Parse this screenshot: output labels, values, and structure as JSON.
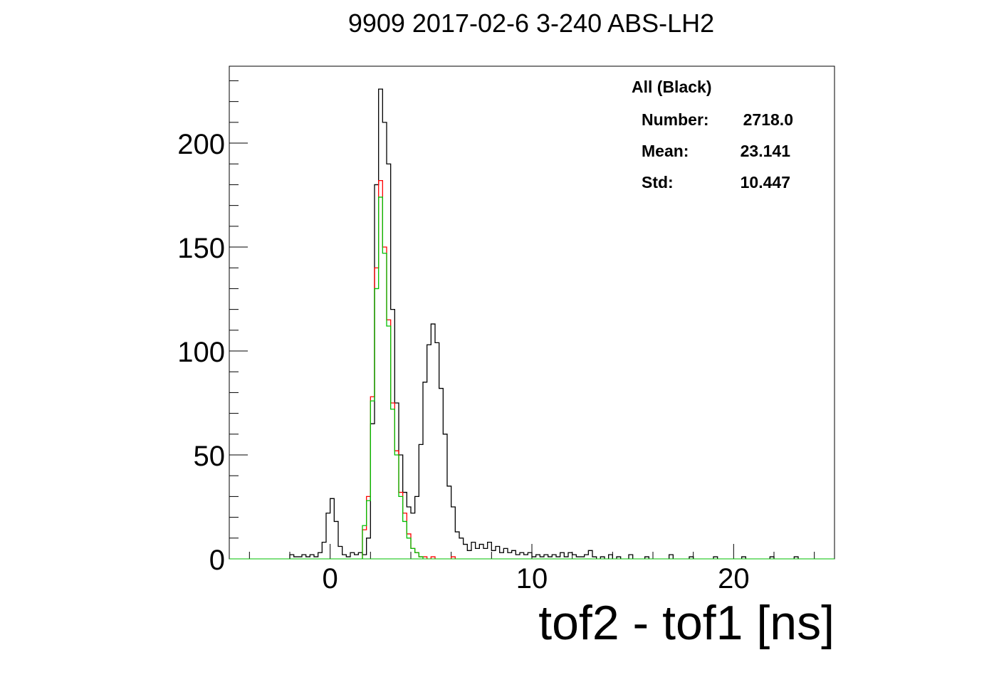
{
  "chart_data": {
    "type": "histogram",
    "title": "9909 2017-02-6 3-240 ABS-LH2",
    "xlabel": "tof2 - tof1 [ns]",
    "ylabel": "",
    "xlim": [
      -5,
      25
    ],
    "ylim": [
      0,
      237
    ],
    "xticks": [
      0,
      10,
      20
    ],
    "yticks": [
      0,
      50,
      100,
      150,
      200
    ],
    "grid": false,
    "colors": {
      "all": "#000000",
      "red": "#ff0000",
      "green": "#00c000"
    },
    "stats": {
      "header": "All (Black)",
      "rows": [
        {
          "label": "Number:",
          "value": "2718.0"
        },
        {
          "label": "Mean:",
          "value": "23.141"
        },
        {
          "label": "Std:",
          "value": "10.447"
        }
      ]
    },
    "bin_width": 0.2,
    "series": [
      {
        "name": "All (Black)",
        "color": "#000000",
        "bins": [
          [
            -2.0,
            2
          ],
          [
            -1.8,
            1
          ],
          [
            -1.6,
            1
          ],
          [
            -1.4,
            2
          ],
          [
            -1.2,
            1
          ],
          [
            -1.0,
            2
          ],
          [
            -0.8,
            1
          ],
          [
            -0.6,
            3
          ],
          [
            -0.4,
            8
          ],
          [
            -0.2,
            22
          ],
          [
            0.0,
            29
          ],
          [
            0.2,
            18
          ],
          [
            0.4,
            6
          ],
          [
            0.6,
            2
          ],
          [
            0.8,
            1
          ],
          [
            1.0,
            3
          ],
          [
            1.2,
            2
          ],
          [
            1.4,
            3
          ],
          [
            1.6,
            2
          ],
          [
            1.8,
            10
          ],
          [
            2.0,
            65
          ],
          [
            2.2,
            180
          ],
          [
            2.4,
            226
          ],
          [
            2.6,
            210
          ],
          [
            2.8,
            190
          ],
          [
            3.0,
            120
          ],
          [
            3.2,
            75
          ],
          [
            3.4,
            50
          ],
          [
            3.6,
            32
          ],
          [
            3.8,
            25
          ],
          [
            4.0,
            22
          ],
          [
            4.2,
            30
          ],
          [
            4.4,
            55
          ],
          [
            4.6,
            85
          ],
          [
            4.8,
            103
          ],
          [
            5.0,
            113
          ],
          [
            5.2,
            104
          ],
          [
            5.4,
            82
          ],
          [
            5.6,
            60
          ],
          [
            5.8,
            35
          ],
          [
            6.0,
            25
          ],
          [
            6.2,
            13
          ],
          [
            6.4,
            10
          ],
          [
            6.6,
            7
          ],
          [
            6.8,
            4
          ],
          [
            7.0,
            8
          ],
          [
            7.2,
            5
          ],
          [
            7.4,
            7
          ],
          [
            7.6,
            5
          ],
          [
            7.8,
            8
          ],
          [
            8.0,
            4
          ],
          [
            8.2,
            6
          ],
          [
            8.4,
            3
          ],
          [
            8.6,
            5
          ],
          [
            8.8,
            3
          ],
          [
            9.0,
            4
          ],
          [
            9.2,
            2
          ],
          [
            9.4,
            3
          ],
          [
            9.6,
            2
          ],
          [
            9.8,
            3
          ],
          [
            10.0,
            1
          ],
          [
            10.2,
            2
          ],
          [
            10.4,
            1
          ],
          [
            10.6,
            2
          ],
          [
            10.8,
            1
          ],
          [
            11.0,
            2
          ],
          [
            11.2,
            1
          ],
          [
            11.4,
            3
          ],
          [
            11.6,
            1
          ],
          [
            11.8,
            3
          ],
          [
            12.0,
            2
          ],
          [
            12.2,
            1
          ],
          [
            12.4,
            1
          ],
          [
            12.6,
            2
          ],
          [
            12.8,
            4
          ],
          [
            13.0,
            1
          ],
          [
            13.4,
            1
          ],
          [
            13.8,
            2
          ],
          [
            14.2,
            1
          ],
          [
            14.8,
            2
          ],
          [
            15.6,
            1
          ],
          [
            16.8,
            2
          ],
          [
            17.8,
            1
          ],
          [
            19.0,
            1
          ],
          [
            20.4,
            1
          ],
          [
            21.8,
            1
          ],
          [
            23.0,
            1
          ]
        ]
      },
      {
        "name": "Red",
        "color": "#ff0000",
        "bins": [
          [
            1.6,
            14
          ],
          [
            1.8,
            30
          ],
          [
            2.0,
            78
          ],
          [
            2.2,
            140
          ],
          [
            2.4,
            182
          ],
          [
            2.6,
            150
          ],
          [
            2.8,
            115
          ],
          [
            3.0,
            75
          ],
          [
            3.2,
            52
          ],
          [
            3.4,
            32
          ],
          [
            3.6,
            22
          ],
          [
            3.8,
            12
          ],
          [
            4.0,
            5
          ],
          [
            4.2,
            3
          ],
          [
            4.4,
            1
          ],
          [
            4.6,
            1
          ],
          [
            5.0,
            1
          ],
          [
            6.0,
            1
          ]
        ]
      },
      {
        "name": "Green",
        "color": "#00c000",
        "bins": [
          [
            1.6,
            16
          ],
          [
            1.8,
            28
          ],
          [
            2.0,
            76
          ],
          [
            2.2,
            130
          ],
          [
            2.4,
            174
          ],
          [
            2.6,
            147
          ],
          [
            2.8,
            112
          ],
          [
            3.0,
            72
          ],
          [
            3.2,
            50
          ],
          [
            3.4,
            30
          ],
          [
            3.6,
            18
          ],
          [
            3.8,
            10
          ],
          [
            4.0,
            5
          ],
          [
            4.2,
            3
          ],
          [
            4.4,
            1
          ]
        ]
      }
    ]
  }
}
